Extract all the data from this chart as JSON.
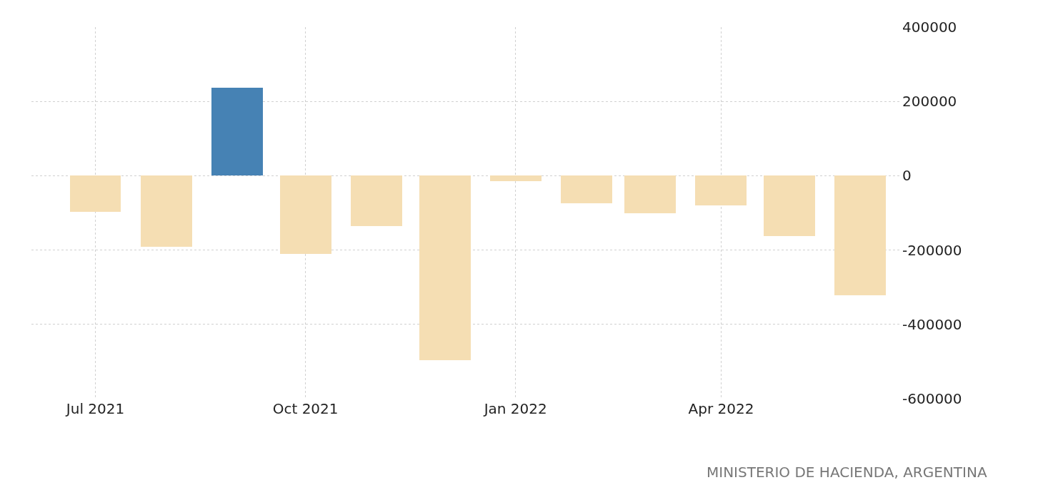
{
  "chart_data": {
    "type": "bar",
    "x": [
      "2021-07",
      "2021-08",
      "2021-09",
      "2021-10",
      "2021-11",
      "2021-12",
      "2022-01",
      "2022-02",
      "2022-03",
      "2022-04",
      "2022-05",
      "2022-06"
    ],
    "values": [
      -98000,
      -192000,
      236000,
      -210000,
      -135000,
      -496000,
      -15000,
      -75000,
      -100000,
      -79000,
      -162000,
      -321000
    ],
    "colors": [
      "#f5deb3",
      "#f5deb3",
      "#4682b4",
      "#f5deb3",
      "#f5deb3",
      "#f5deb3",
      "#f5deb3",
      "#f5deb3",
      "#f5deb3",
      "#f5deb3",
      "#f5deb3",
      "#f5deb3"
    ],
    "xlim": [
      "2021-06-03",
      "2022-06-19"
    ],
    "xticks": [
      {
        "value": "2021-07",
        "label": "Jul 2021"
      },
      {
        "value": "2021-10",
        "label": "Oct 2021"
      },
      {
        "value": "2022-01",
        "label": "Jan 2022"
      },
      {
        "value": "2022-04",
        "label": "Apr 2022"
      }
    ],
    "ylim": [
      -600000,
      400000
    ],
    "yticks": [
      -600000,
      -400000,
      -200000,
      0,
      200000,
      400000
    ],
    "grid": true,
    "annotations": [
      "MINISTERIO DE HACIENDA, ARGENTINA"
    ]
  }
}
